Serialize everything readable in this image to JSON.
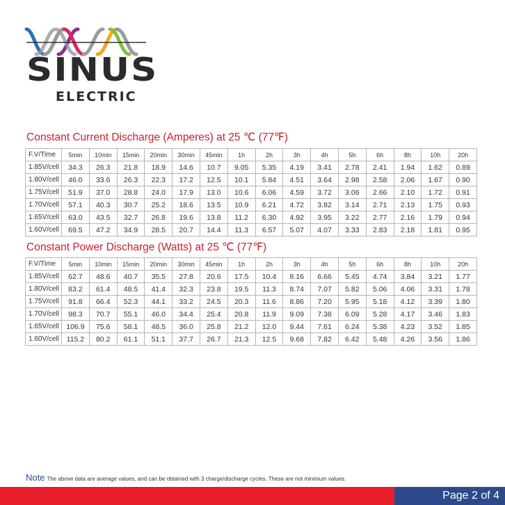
{
  "logo": {
    "name": "SINUS",
    "sub": "ELECTRIC",
    "wave_colors": [
      "#2a6fb8",
      "#8b2c8f",
      "#e0245e",
      "#f2a71b",
      "#7dc242",
      "#9a9a9a"
    ]
  },
  "tables": [
    {
      "title": "Constant Current Discharge (Amperes) at 25 ℃ (77℉)",
      "headers": [
        "F.V/Time",
        "5min",
        "10min",
        "15min",
        "20min",
        "30min",
        "45min",
        "1h",
        "2h",
        "3h",
        "4h",
        "5h",
        "6h",
        "8h",
        "10h",
        "20h"
      ],
      "rows": [
        [
          "1.85V/cell",
          "34.3",
          "26.3",
          "21.8",
          "18.9",
          "14.6",
          "10.7",
          "9.05",
          "5.35",
          "4.19",
          "3.41",
          "2.78",
          "2.41",
          "1.94",
          "1.62",
          "0.89"
        ],
        [
          "1.80V/cell",
          "46.0",
          "33.6",
          "26.3",
          "22.3",
          "17.2",
          "12.5",
          "10.1",
          "5.84",
          "4.51",
          "3.64",
          "2.98",
          "2.58",
          "2.06",
          "1.67",
          "0.90"
        ],
        [
          "1.75V/cell",
          "51.9",
          "37.0",
          "28.8",
          "24.0",
          "17.9",
          "13.0",
          "10.6",
          "6.06",
          "4.59",
          "3.72",
          "3.06",
          "2.66",
          "2.10",
          "1.72",
          "0.91"
        ],
        [
          "1.70V/cell",
          "57.1",
          "40.3",
          "30.7",
          "25.2",
          "18.6",
          "13.5",
          "10.9",
          "6.21",
          "4.72",
          "3.82",
          "3.14",
          "2.71",
          "2.13",
          "1.75",
          "0.93"
        ],
        [
          "1.65V/cell",
          "63.0",
          "43.5",
          "32.7",
          "26.8",
          "19.6",
          "13.8",
          "11.2",
          "6.30",
          "4.92",
          "3.95",
          "3.22",
          "2.77",
          "2.16",
          "1.79",
          "0.94"
        ],
        [
          "1.60V/cell",
          "69.5",
          "47.2",
          "34.9",
          "28.5",
          "20.7",
          "14.4",
          "11.3",
          "6.57",
          "5.07",
          "4.07",
          "3.33",
          "2.83",
          "2.18",
          "1.81",
          "0.95"
        ]
      ]
    },
    {
      "title": "Constant Power Discharge (Watts) at 25 ℃ (77℉)",
      "headers": [
        "F.V/Time",
        "5min",
        "10min",
        "15min",
        "20min",
        "30min",
        "45min",
        "1h",
        "2h",
        "3h",
        "4h",
        "5h",
        "6h",
        "8h",
        "10h",
        "20h"
      ],
      "rows": [
        [
          "1.85V/cell",
          "62.7",
          "48.6",
          "40.7",
          "35.5",
          "27.8",
          "20.6",
          "17.5",
          "10.4",
          "8.16",
          "6.66",
          "5.45",
          "4.74",
          "3.84",
          "3.21",
          "1.77"
        ],
        [
          "1.80V/cell",
          "83.2",
          "61.4",
          "48.5",
          "41.4",
          "32.3",
          "23.8",
          "19.5",
          "11.3",
          "8.74",
          "7.07",
          "5.82",
          "5.06",
          "4.06",
          "3.31",
          "1.78"
        ],
        [
          "1.75V/cell",
          "91.8",
          "66.4",
          "52.3",
          "44.1",
          "33.2",
          "24.5",
          "20.3",
          "11.6",
          "8.86",
          "7.20",
          "5.95",
          "5.18",
          "4.12",
          "3.39",
          "1.80"
        ],
        [
          "1.70V/cell",
          "98.3",
          "70.7",
          "55.1",
          "46.0",
          "34.4",
          "25.4",
          "20.8",
          "11.9",
          "9.09",
          "7.38",
          "6.09",
          "5.28",
          "4.17",
          "3.46",
          "1.83"
        ],
        [
          "1.65V/cell",
          "106.9",
          "75.6",
          "58.1",
          "48.5",
          "36.0",
          "25.8",
          "21.2",
          "12.0",
          "9.44",
          "7.61",
          "6.24",
          "5.38",
          "4.23",
          "3.52",
          "1.85"
        ],
        [
          "1.60V/cell",
          "115.2",
          "80.2",
          "61.1",
          "51.1",
          "37.7",
          "26.7",
          "21.3",
          "12.5",
          "9.68",
          "7.82",
          "6.42",
          "5.48",
          "4.26",
          "3.56",
          "1.86"
        ]
      ]
    }
  ],
  "note": {
    "label": "Note",
    "text": "The above data are average values, and can be obtained with 3 charge/discharge cycles. These are not minimum values."
  },
  "footer": {
    "page": "Page 2 of 4",
    "bar_color": "#e61e2a",
    "page_color": "#2c4a8a"
  }
}
